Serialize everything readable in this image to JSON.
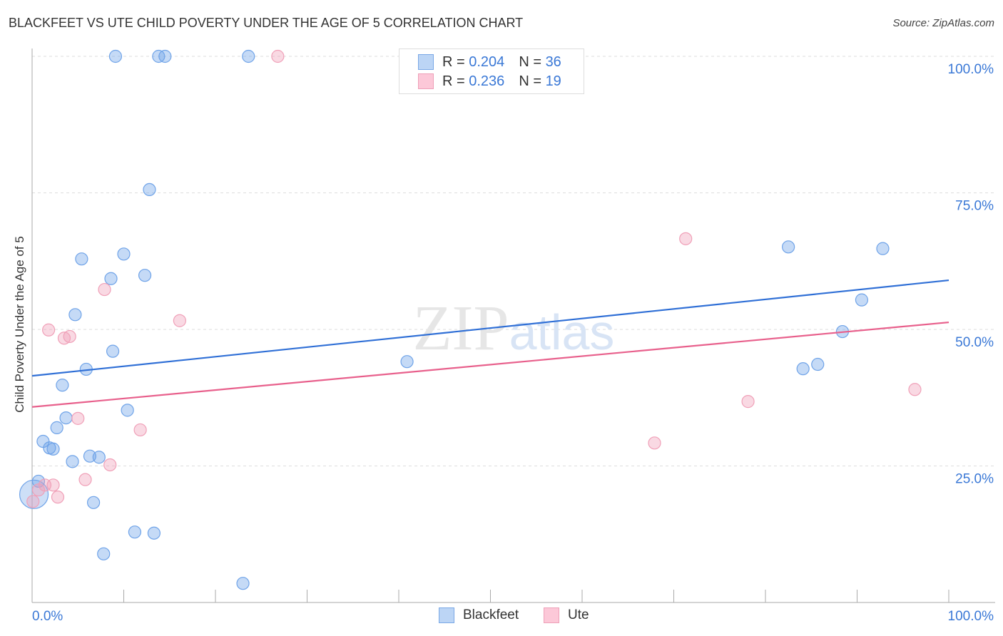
{
  "title": "BLACKFEET VS UTE CHILD POVERTY UNDER THE AGE OF 5 CORRELATION CHART",
  "source": "Source: ZipAtlas.com",
  "watermark": "ZIPatlas",
  "legend": {
    "rows": [
      {
        "r_label": "R =",
        "r": "0.204",
        "n_label": "N =",
        "n": "36"
      },
      {
        "r_label": "R =",
        "r": "0.236",
        "n_label": "N =",
        "n": "19"
      }
    ]
  },
  "chart_data": {
    "type": "scatter",
    "title": "BLACKFEET VS UTE CHILD POVERTY UNDER THE AGE OF 5 CORRELATION CHART",
    "xlabel": "",
    "ylabel": "Child Poverty Under the Age of 5",
    "xlim": [
      0,
      100
    ],
    "ylim": [
      0,
      100
    ],
    "x_tick_labels": [
      "0.0%",
      "100.0%"
    ],
    "y_tick_labels": [
      "100.0%",
      "75.0%",
      "50.0%",
      "25.0%"
    ],
    "grid": true,
    "legend_position": "top-center",
    "series": [
      {
        "name": "Blackfeet",
        "color": "#6fa3e8",
        "line_color": "#2f6fd6",
        "trend": [
          [
            0,
            41.5
          ],
          [
            100,
            59.0
          ]
        ],
        "points": [
          [
            9.1,
            100
          ],
          [
            13.8,
            100
          ],
          [
            14.5,
            100
          ],
          [
            23.6,
            100
          ],
          [
            12.8,
            75.6
          ],
          [
            5.4,
            62.9
          ],
          [
            10.0,
            63.8
          ],
          [
            8.6,
            59.3
          ],
          [
            12.3,
            59.9
          ],
          [
            4.7,
            52.7
          ],
          [
            8.8,
            46.0
          ],
          [
            5.9,
            42.7
          ],
          [
            3.3,
            39.8
          ],
          [
            40.9,
            44.1
          ],
          [
            10.4,
            35.2
          ],
          [
            3.7,
            33.8
          ],
          [
            2.7,
            32.0
          ],
          [
            1.2,
            29.5
          ],
          [
            1.9,
            28.3
          ],
          [
            2.3,
            28.1
          ],
          [
            4.4,
            25.8
          ],
          [
            6.3,
            26.8
          ],
          [
            7.3,
            26.6
          ],
          [
            0.7,
            22.2
          ],
          [
            6.7,
            18.3
          ],
          [
            11.2,
            12.9
          ],
          [
            13.3,
            12.7
          ],
          [
            7.8,
            8.9
          ],
          [
            23.0,
            3.5
          ],
          [
            82.5,
            65.1
          ],
          [
            92.8,
            64.8
          ],
          [
            90.5,
            55.4
          ],
          [
            88.4,
            49.6
          ],
          [
            84.1,
            42.8
          ],
          [
            85.7,
            43.6
          ],
          [
            0.2,
            19.8
          ]
        ]
      },
      {
        "name": "Ute",
        "color": "#f0a0b8",
        "line_color": "#e8608c",
        "trend": [
          [
            0,
            35.8
          ],
          [
            100,
            51.3
          ]
        ],
        "points": [
          [
            26.8,
            100
          ],
          [
            71.3,
            66.6
          ],
          [
            7.9,
            57.3
          ],
          [
            16.1,
            51.6
          ],
          [
            1.8,
            49.9
          ],
          [
            4.1,
            48.7
          ],
          [
            3.5,
            48.4
          ],
          [
            5.0,
            33.7
          ],
          [
            11.8,
            31.6
          ],
          [
            8.5,
            25.2
          ],
          [
            5.8,
            22.5
          ],
          [
            1.4,
            21.5
          ],
          [
            2.3,
            21.5
          ],
          [
            0.7,
            20.6
          ],
          [
            2.8,
            19.3
          ],
          [
            0.1,
            18.5
          ],
          [
            78.1,
            36.8
          ],
          [
            67.9,
            29.2
          ],
          [
            96.3,
            39.0
          ]
        ]
      }
    ]
  }
}
